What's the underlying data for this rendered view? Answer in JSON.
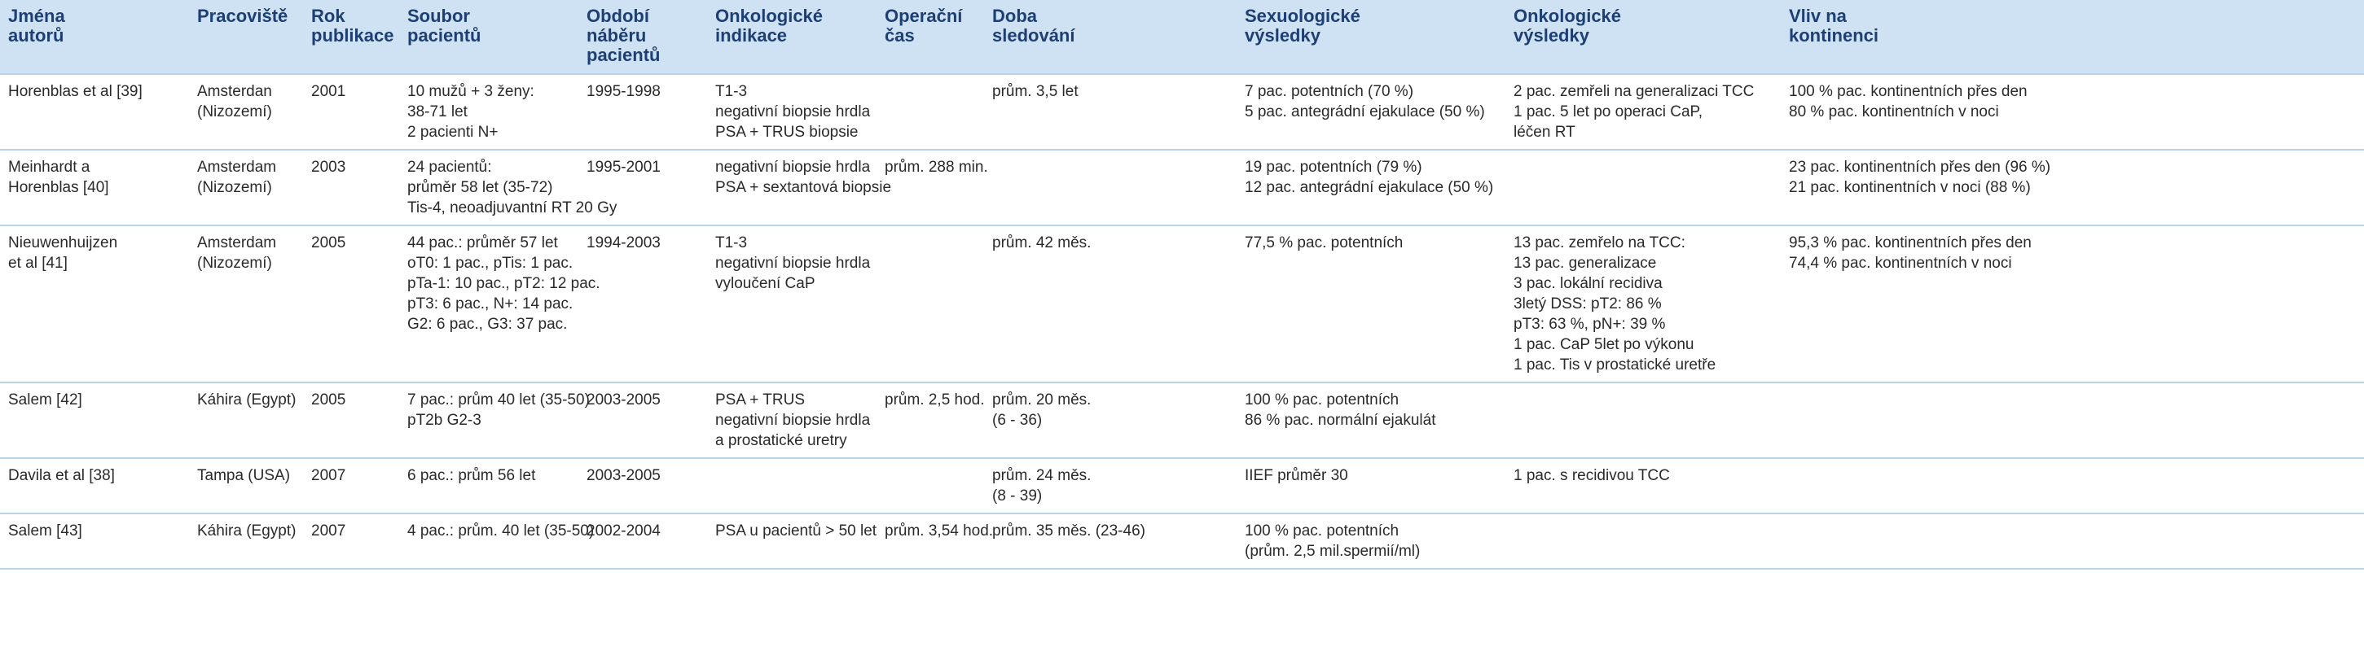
{
  "table": {
    "headers": [
      [
        "Jména",
        "autorů"
      ],
      [
        "Pracoviště"
      ],
      [
        "Rok",
        "publikace"
      ],
      [
        "Soubor",
        "pacientů"
      ],
      [
        "Období",
        "náběru",
        "pacientů"
      ],
      [
        "Onkologické",
        "indikace"
      ],
      [
        "Operační",
        "čas"
      ],
      [
        "Doba",
        "sledování"
      ],
      [
        "Sexuologické",
        "výsledky"
      ],
      [
        "Onkologické",
        "výsledky"
      ],
      [
        "Vliv na",
        "kontinenci"
      ]
    ],
    "rows": [
      [
        [
          "Horenblas et al [39]"
        ],
        [
          "Amsterdan",
          "(Nizozemí)"
        ],
        [
          "2001"
        ],
        [
          "10 mužů + 3 ženy:",
          "38-71 let",
          "2 pacienti N+"
        ],
        [
          "1995-1998"
        ],
        [
          "T1-3",
          "negativní biopsie hrdla",
          "PSA + TRUS biopsie"
        ],
        [],
        [
          "prům. 3,5 let"
        ],
        [
          "7 pac. potentních (70 %)",
          "5 pac. antegrádní ejakulace (50 %)"
        ],
        [
          "2 pac. zemřeli na generalizaci TCC",
          "1 pac. 5 let po operaci CaP,",
          "léčen RT"
        ],
        [
          "100 % pac. kontinentních přes den",
          "80 % pac. kontinentních v noci"
        ]
      ],
      [
        [
          "Meinhardt a",
          "Horenblas [40]"
        ],
        [
          "Amsterdam",
          "(Nizozemí)"
        ],
        [
          "2003"
        ],
        [
          "24 pacientů:",
          "průměr 58 let (35-72)",
          "Tis-4, neoadjuvantní RT 20 Gy"
        ],
        [
          "1995-2001"
        ],
        [
          "negativní biopsie hrdla",
          "PSA + sextantová biopsie"
        ],
        [
          "prům. 288 min."
        ],
        [],
        [
          "19 pac. potentních (79 %)",
          "12 pac. antegrádní ejakulace (50 %)"
        ],
        [],
        [
          "23 pac. kontinentních přes den (96 %)",
          "21 pac. kontinentních v noci (88 %)"
        ]
      ],
      [
        [
          "Nieuwenhuijzen",
          "et al [41]"
        ],
        [
          "Amsterdam",
          "(Nizozemí)"
        ],
        [
          "2005"
        ],
        [
          "44 pac.: průměr 57 let",
          "oT0: 1 pac., pTis: 1 pac.",
          "pTa-1: 10 pac., pT2: 12 pac.",
          "pT3: 6 pac., N+: 14 pac.",
          "G2: 6 pac., G3: 37 pac."
        ],
        [
          "1994-2003"
        ],
        [
          "T1-3",
          "negativní biopsie hrdla",
          "vyloučení CaP"
        ],
        [],
        [
          "prům. 42 měs."
        ],
        [
          "77,5 % pac. potentních"
        ],
        [
          "13 pac. zemřelo na TCC:",
          "13 pac. generalizace",
          "3 pac. lokální recidiva",
          "3letý DSS: pT2: 86 %",
          "pT3: 63 %, pN+: 39 %",
          "1 pac. CaP 5let po výkonu",
          "1 pac. Tis v prostatické uretře"
        ],
        [
          "95,3 % pac. kontinentních přes den",
          "74,4 % pac. kontinentních v noci"
        ]
      ],
      [
        [
          "Salem [42]"
        ],
        [
          "Káhira (Egypt)"
        ],
        [
          "2005"
        ],
        [
          "7 pac.: prům 40 let (35-50)",
          "pT2b G2-3"
        ],
        [
          "2003-2005"
        ],
        [
          "PSA + TRUS",
          "negativní biopsie hrdla",
          "a prostatické uretry"
        ],
        [
          "prům. 2,5 hod."
        ],
        [
          "prům. 20 měs.",
          "(6 - 36)"
        ],
        [
          "100 % pac. potentních",
          "86 % pac. normální ejakulát"
        ],
        [],
        []
      ],
      [
        [
          "Davila et al [38]"
        ],
        [
          "Tampa (USA)"
        ],
        [
          "2007"
        ],
        [
          "6 pac.: prům 56 let"
        ],
        [
          "2003-2005"
        ],
        [],
        [],
        [
          "prům. 24 měs.",
          "(8 - 39)"
        ],
        [
          "IIEF průměr 30"
        ],
        [
          "1 pac. s recidivou TCC"
        ],
        []
      ],
      [
        [
          "Salem [43]"
        ],
        [
          "Káhira (Egypt)"
        ],
        [
          "2007"
        ],
        [
          "4 pac.: prům. 40 let (35-50)"
        ],
        [
          "2002-2004"
        ],
        [
          "PSA u pacientů > 50 let"
        ],
        [
          "prům. 3,54 hod."
        ],
        [
          "prům. 35 měs. (23-46)"
        ],
        [
          "100 % pac. potentních",
          "(prům. 2,5 mil.spermií/ml)"
        ],
        [],
        []
      ]
    ]
  }
}
